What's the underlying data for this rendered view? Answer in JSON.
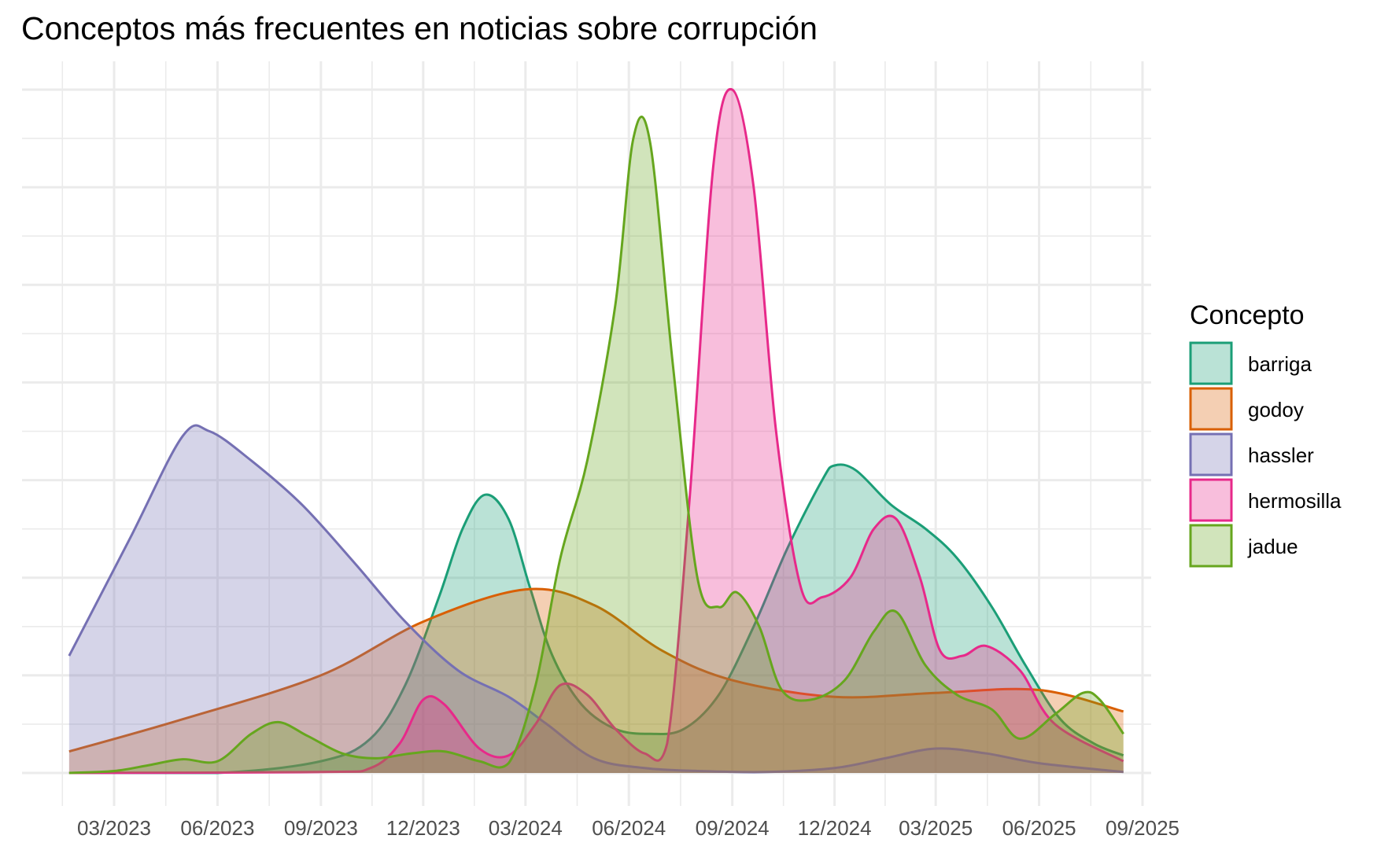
{
  "chart_data": {
    "type": "area",
    "title": "Conceptos más frecuentes en noticias sobre corrupción",
    "xlabel": "",
    "ylabel": "",
    "y_tick_labels_shown": false,
    "grid": true,
    "legend": {
      "title": "Concepto",
      "placement": "right",
      "items": [
        {
          "label": "barriga",
          "color": "#1B9E77"
        },
        {
          "label": "godoy",
          "color": "#D95F02"
        },
        {
          "label": "hassler",
          "color": "#7570B3"
        },
        {
          "label": "hermosilla",
          "color": "#E7298A"
        },
        {
          "label": "jadue",
          "color": "#66A61E"
        }
      ]
    },
    "x_ticks": [
      {
        "date": "2023-03-01",
        "label": "03/2023"
      },
      {
        "date": "2023-06-01",
        "label": "06/2023"
      },
      {
        "date": "2023-09-01",
        "label": "09/2023"
      },
      {
        "date": "2023-12-01",
        "label": "12/2023"
      },
      {
        "date": "2024-03-01",
        "label": "03/2024"
      },
      {
        "date": "2024-06-01",
        "label": "06/2024"
      },
      {
        "date": "2024-09-01",
        "label": "09/2024"
      },
      {
        "date": "2024-12-01",
        "label": "12/2024"
      },
      {
        "date": "2025-03-01",
        "label": "03/2025"
      },
      {
        "date": "2025-06-01",
        "label": "06/2025"
      },
      {
        "date": "2025-09-01",
        "label": "09/2025"
      }
    ],
    "xlim": [
      "2023-01-20",
      "2025-09-30"
    ],
    "ylim": [
      0,
      7.4
    ],
    "series": [
      {
        "name": "barriga",
        "color": "#1B9E77",
        "x": [
          "2023-01-20",
          "2023-06-01",
          "2023-09-01",
          "2023-10-15",
          "2023-11-15",
          "2023-12-15",
          "2024-01-05",
          "2024-01-25",
          "2024-02-15",
          "2024-03-05",
          "2024-03-25",
          "2024-04-20",
          "2024-05-20",
          "2024-06-20",
          "2024-07-20",
          "2024-08-20",
          "2024-09-20",
          "2024-10-20",
          "2024-11-20",
          "2024-12-01",
          "2024-12-20",
          "2025-01-20",
          "2025-02-20",
          "2025-03-20",
          "2025-04-20",
          "2025-05-20",
          "2025-06-20",
          "2025-07-20",
          "2025-08-15"
        ],
        "values": [
          0,
          0,
          0.12,
          0.35,
          0.9,
          1.8,
          2.5,
          2.85,
          2.6,
          1.9,
          1.2,
          0.7,
          0.45,
          0.4,
          0.45,
          0.8,
          1.5,
          2.3,
          3.0,
          3.15,
          3.1,
          2.75,
          2.5,
          2.2,
          1.7,
          1.1,
          0.55,
          0.3,
          0.18
        ]
      },
      {
        "name": "godoy",
        "color": "#D95F02",
        "x": [
          "2023-01-20",
          "2023-05-01",
          "2023-09-01",
          "2023-12-01",
          "2024-03-01",
          "2024-05-01",
          "2024-07-01",
          "2024-09-01",
          "2024-12-01",
          "2025-03-01",
          "2025-06-01",
          "2025-08-15"
        ],
        "values": [
          0.22,
          0.55,
          1.0,
          1.55,
          1.88,
          1.72,
          1.25,
          0.95,
          0.78,
          0.82,
          0.85,
          0.63
        ]
      },
      {
        "name": "hassler",
        "color": "#7570B3",
        "x": [
          "2023-01-20",
          "2023-03-15",
          "2023-05-01",
          "2023-05-25",
          "2023-07-01",
          "2023-08-15",
          "2023-10-01",
          "2023-11-15",
          "2024-01-01",
          "2024-02-15",
          "2024-03-20",
          "2024-05-01",
          "2024-06-15",
          "2024-08-01",
          "2024-10-01",
          "2024-12-01",
          "2025-01-15",
          "2025-03-01",
          "2025-04-15",
          "2025-06-01",
          "2025-08-15"
        ],
        "values": [
          1.2,
          2.4,
          3.45,
          3.5,
          3.2,
          2.75,
          2.15,
          1.55,
          1.05,
          0.78,
          0.5,
          0.15,
          0.05,
          0.02,
          0.01,
          0.05,
          0.15,
          0.25,
          0.2,
          0.1,
          0.01
        ]
      },
      {
        "name": "hermosilla",
        "color": "#E7298A",
        "x": [
          "2023-01-20",
          "2023-09-01",
          "2023-10-15",
          "2023-11-10",
          "2023-12-01",
          "2023-12-20",
          "2024-01-20",
          "2024-02-15",
          "2024-03-10",
          "2024-04-01",
          "2024-04-25",
          "2024-05-20",
          "2024-06-15",
          "2024-07-05",
          "2024-07-25",
          "2024-08-15",
          "2024-09-01",
          "2024-09-20",
          "2024-10-10",
          "2024-11-01",
          "2024-11-20",
          "2024-12-15",
          "2025-01-05",
          "2025-01-25",
          "2025-02-15",
          "2025-03-05",
          "2025-03-25",
          "2025-04-15",
          "2025-05-15",
          "2025-06-15",
          "2025-08-15"
        ],
        "values": [
          0,
          0.01,
          0.05,
          0.3,
          0.75,
          0.7,
          0.25,
          0.18,
          0.5,
          0.9,
          0.8,
          0.45,
          0.2,
          0.3,
          2.8,
          6.2,
          7.0,
          6.0,
          3.5,
          1.9,
          1.8,
          2.0,
          2.5,
          2.6,
          2.0,
          1.25,
          1.2,
          1.3,
          1.05,
          0.5,
          0.12
        ]
      },
      {
        "name": "jadue",
        "color": "#66A61E",
        "x": [
          "2023-01-20",
          "2023-03-01",
          "2023-04-01",
          "2023-05-01",
          "2023-06-01",
          "2023-07-01",
          "2023-07-25",
          "2023-08-20",
          "2023-09-20",
          "2023-10-20",
          "2023-11-20",
          "2023-12-20",
          "2024-01-20",
          "2024-02-15",
          "2024-03-10",
          "2024-04-01",
          "2024-04-25",
          "2024-05-20",
          "2024-06-05",
          "2024-06-20",
          "2024-07-10",
          "2024-08-01",
          "2024-08-20",
          "2024-09-05",
          "2024-09-25",
          "2024-10-15",
          "2024-11-10",
          "2024-12-10",
          "2025-01-05",
          "2025-01-25",
          "2025-02-20",
          "2025-03-20",
          "2025-04-20",
          "2025-05-15",
          "2025-06-15",
          "2025-07-10",
          "2025-07-25",
          "2025-08-15"
        ],
        "values": [
          0,
          0.02,
          0.08,
          0.14,
          0.12,
          0.4,
          0.52,
          0.38,
          0.2,
          0.15,
          0.2,
          0.22,
          0.12,
          0.1,
          0.9,
          2.2,
          3.2,
          4.8,
          6.5,
          6.45,
          4.2,
          2.0,
          1.7,
          1.85,
          1.5,
          0.85,
          0.75,
          0.95,
          1.45,
          1.65,
          1.1,
          0.8,
          0.65,
          0.35,
          0.6,
          0.82,
          0.75,
          0.4
        ]
      }
    ]
  }
}
